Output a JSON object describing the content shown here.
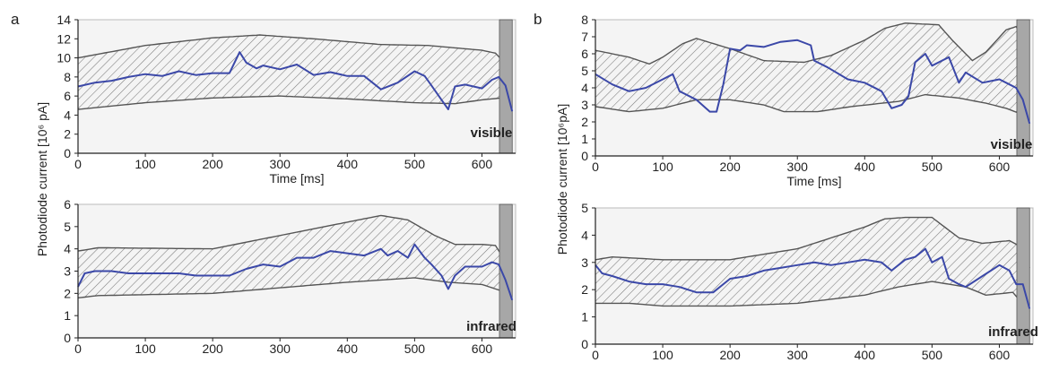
{
  "panels": [
    {
      "letter": "a",
      "ylabel": "Photodiode current [10⁶ pA]"
    },
    {
      "letter": "b",
      "ylabel": "Photodiode current [10⁶pA]"
    }
  ],
  "colors": {
    "signal": "#3b48a8",
    "band_edge": "#555555",
    "hatch": "#7a7a7a",
    "plot_bg": "#f4f4f4",
    "end_bar": "#a7a7a7"
  },
  "chart_data": [
    {
      "type": "line",
      "panel": "a",
      "annotation": "visible",
      "xlabel": "Time [ms]",
      "ylabel": "Photodiode current [10⁶ pA]",
      "xlim": [
        0,
        650
      ],
      "ylim": [
        0,
        14
      ],
      "xticks": [
        0,
        100,
        200,
        300,
        400,
        500,
        600
      ],
      "yticks": [
        0,
        2,
        4,
        6,
        8,
        10,
        12,
        14
      ],
      "band_upper": [
        [
          0,
          10
        ],
        [
          100,
          11.3
        ],
        [
          200,
          12.1
        ],
        [
          270,
          12.4
        ],
        [
          350,
          12
        ],
        [
          450,
          11.4
        ],
        [
          520,
          11.3
        ],
        [
          600,
          10.8
        ],
        [
          620,
          10.5
        ],
        [
          640,
          9
        ]
      ],
      "band_lower": [
        [
          0,
          4.6
        ],
        [
          100,
          5.3
        ],
        [
          200,
          5.8
        ],
        [
          300,
          6
        ],
        [
          400,
          5.7
        ],
        [
          500,
          5.3
        ],
        [
          560,
          5.2
        ],
        [
          600,
          5.6
        ],
        [
          630,
          5.8
        ],
        [
          645,
          3
        ]
      ],
      "end_bar_x": [
        626,
        645
      ],
      "x": [
        0,
        25,
        50,
        75,
        100,
        125,
        150,
        175,
        200,
        225,
        240,
        250,
        265,
        275,
        300,
        325,
        350,
        375,
        400,
        425,
        450,
        475,
        500,
        515,
        525,
        540,
        550,
        560,
        575,
        600,
        615,
        625,
        635,
        645
      ],
      "y": [
        7.0,
        7.4,
        7.6,
        8.0,
        8.3,
        8.1,
        8.6,
        8.2,
        8.4,
        8.4,
        10.6,
        9.5,
        8.9,
        9.2,
        8.8,
        9.3,
        8.2,
        8.5,
        8.1,
        8.1,
        6.7,
        7.4,
        8.6,
        8.1,
        7.1,
        5.6,
        4.6,
        7.0,
        7.2,
        6.8,
        7.7,
        8.0,
        7.1,
        4.4
      ]
    },
    {
      "type": "line",
      "panel": "a",
      "annotation": "infrared",
      "xlabel": "",
      "ylabel": "Photodiode current [10⁶ pA]",
      "xlim": [
        0,
        650
      ],
      "ylim": [
        0,
        6
      ],
      "xticks": [
        0,
        100,
        200,
        300,
        400,
        500,
        600
      ],
      "yticks": [
        0,
        1,
        2,
        3,
        4,
        5,
        6
      ],
      "band_upper": [
        [
          0,
          3.9
        ],
        [
          30,
          4.05
        ],
        [
          200,
          4
        ],
        [
          300,
          4.6
        ],
        [
          400,
          5.2
        ],
        [
          450,
          5.5
        ],
        [
          490,
          5.3
        ],
        [
          530,
          4.6
        ],
        [
          560,
          4.2
        ],
        [
          600,
          4.2
        ],
        [
          620,
          4.15
        ],
        [
          640,
          3.2
        ]
      ],
      "band_lower": [
        [
          0,
          1.8
        ],
        [
          30,
          1.9
        ],
        [
          200,
          2
        ],
        [
          300,
          2.25
        ],
        [
          400,
          2.5
        ],
        [
          500,
          2.7
        ],
        [
          550,
          2.5
        ],
        [
          600,
          2.4
        ],
        [
          630,
          2.1
        ],
        [
          645,
          1.5
        ]
      ],
      "end_bar_x": [
        626,
        645
      ],
      "x": [
        0,
        10,
        25,
        50,
        75,
        100,
        125,
        150,
        175,
        200,
        225,
        250,
        275,
        300,
        325,
        350,
        375,
        400,
        425,
        450,
        460,
        475,
        490,
        500,
        515,
        525,
        540,
        550,
        560,
        575,
        600,
        615,
        625,
        635,
        645
      ],
      "y": [
        2.3,
        2.9,
        3.0,
        3.0,
        2.9,
        2.9,
        2.9,
        2.9,
        2.8,
        2.8,
        2.8,
        3.1,
        3.3,
        3.2,
        3.6,
        3.6,
        3.9,
        3.8,
        3.7,
        4.0,
        3.7,
        3.9,
        3.6,
        4.2,
        3.6,
        3.3,
        2.8,
        2.2,
        2.8,
        3.2,
        3.2,
        3.4,
        3.3,
        2.6,
        1.7
      ]
    },
    {
      "type": "line",
      "panel": "b",
      "annotation": "visible",
      "xlabel": "Time [ms]",
      "ylabel": "Photodiode current [10⁶pA]",
      "xlim": [
        0,
        650
      ],
      "ylim": [
        0,
        8
      ],
      "xticks": [
        0,
        100,
        200,
        300,
        400,
        500,
        600
      ],
      "yticks": [
        0,
        1,
        2,
        3,
        4,
        5,
        6,
        7,
        8
      ],
      "band_upper": [
        [
          0,
          6.2
        ],
        [
          50,
          5.8
        ],
        [
          80,
          5.4
        ],
        [
          100,
          5.8
        ],
        [
          130,
          6.6
        ],
        [
          150,
          6.9
        ],
        [
          200,
          6.3
        ],
        [
          250,
          5.6
        ],
        [
          310,
          5.5
        ],
        [
          350,
          5.9
        ],
        [
          400,
          6.8
        ],
        [
          430,
          7.5
        ],
        [
          460,
          7.8
        ],
        [
          510,
          7.7
        ],
        [
          530,
          6.8
        ],
        [
          560,
          5.6
        ],
        [
          580,
          6.1
        ],
        [
          610,
          7.4
        ],
        [
          625,
          7.6
        ],
        [
          640,
          6.5
        ]
      ],
      "band_lower": [
        [
          0,
          2.9
        ],
        [
          50,
          2.6
        ],
        [
          100,
          2.8
        ],
        [
          150,
          3.3
        ],
        [
          200,
          3.3
        ],
        [
          250,
          3.0
        ],
        [
          280,
          2.6
        ],
        [
          330,
          2.6
        ],
        [
          380,
          2.9
        ],
        [
          450,
          3.2
        ],
        [
          490,
          3.6
        ],
        [
          540,
          3.4
        ],
        [
          580,
          3.1
        ],
        [
          610,
          2.8
        ],
        [
          630,
          2.5
        ],
        [
          645,
          1.5
        ]
      ],
      "end_bar_x": [
        626,
        645
      ],
      "x": [
        0,
        25,
        50,
        75,
        100,
        115,
        125,
        150,
        170,
        180,
        190,
        200,
        215,
        225,
        250,
        275,
        300,
        320,
        325,
        345,
        375,
        400,
        425,
        440,
        455,
        465,
        475,
        490,
        500,
        515,
        525,
        540,
        550,
        575,
        600,
        615,
        625,
        635,
        645
      ],
      "y": [
        4.8,
        4.2,
        3.8,
        4.0,
        4.5,
        4.8,
        3.8,
        3.3,
        2.6,
        2.6,
        4.2,
        6.3,
        6.2,
        6.5,
        6.4,
        6.7,
        6.8,
        6.5,
        5.6,
        5.2,
        4.5,
        4.3,
        3.8,
        2.8,
        3.0,
        3.5,
        5.5,
        6.0,
        5.3,
        5.6,
        5.8,
        4.3,
        4.9,
        4.3,
        4.5,
        4.2,
        4.0,
        3.3,
        1.9
      ]
    },
    {
      "type": "line",
      "panel": "b",
      "annotation": "infrared",
      "xlabel": "",
      "ylabel": "Photodiode current [10⁶pA]",
      "xlim": [
        0,
        650
      ],
      "ylim": [
        0,
        5
      ],
      "xticks": [
        0,
        100,
        200,
        300,
        400,
        500,
        600
      ],
      "yticks": [
        0,
        1,
        2,
        3,
        4,
        5
      ],
      "band_upper": [
        [
          0,
          3.1
        ],
        [
          25,
          3.2
        ],
        [
          100,
          3.1
        ],
        [
          200,
          3.1
        ],
        [
          300,
          3.5
        ],
        [
          400,
          4.3
        ],
        [
          430,
          4.6
        ],
        [
          460,
          4.65
        ],
        [
          500,
          4.65
        ],
        [
          540,
          3.9
        ],
        [
          575,
          3.7
        ],
        [
          615,
          3.8
        ],
        [
          630,
          3.6
        ],
        [
          645,
          2.8
        ]
      ],
      "band_lower": [
        [
          0,
          1.5
        ],
        [
          50,
          1.5
        ],
        [
          100,
          1.4
        ],
        [
          200,
          1.4
        ],
        [
          300,
          1.5
        ],
        [
          400,
          1.8
        ],
        [
          450,
          2.1
        ],
        [
          500,
          2.3
        ],
        [
          550,
          2.1
        ],
        [
          580,
          1.8
        ],
        [
          620,
          1.9
        ],
        [
          645,
          1.2
        ]
      ],
      "end_bar_x": [
        626,
        645
      ],
      "x": [
        0,
        10,
        25,
        50,
        75,
        100,
        125,
        150,
        175,
        200,
        225,
        250,
        275,
        300,
        325,
        350,
        375,
        400,
        425,
        440,
        460,
        475,
        490,
        500,
        515,
        525,
        540,
        550,
        575,
        600,
        615,
        625,
        635,
        645
      ],
      "y": [
        2.9,
        2.6,
        2.5,
        2.3,
        2.2,
        2.2,
        2.1,
        1.9,
        1.9,
        2.4,
        2.5,
        2.7,
        2.8,
        2.9,
        3.0,
        2.9,
        3.0,
        3.1,
        3.0,
        2.7,
        3.1,
        3.2,
        3.5,
        3.0,
        3.2,
        2.4,
        2.2,
        2.1,
        2.5,
        2.9,
        2.7,
        2.2,
        2.2,
        1.3
      ]
    }
  ]
}
